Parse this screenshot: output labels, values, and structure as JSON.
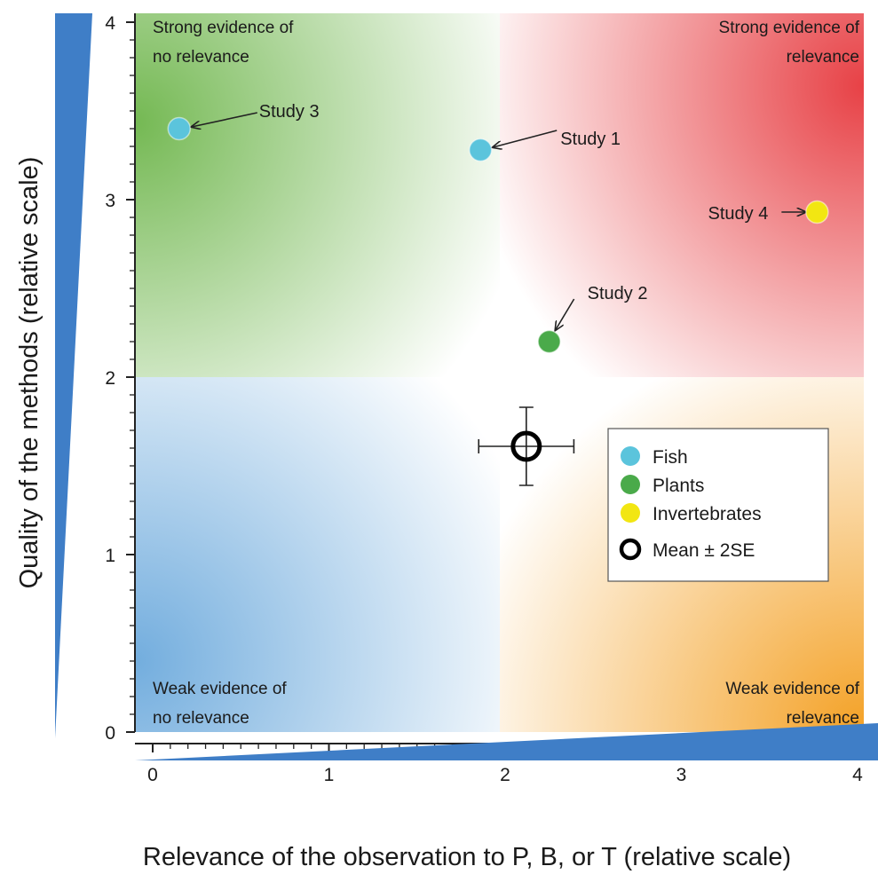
{
  "chart_data": {
    "type": "scatter",
    "xlabel": "Relevance of the observation to P, B, or T (relative scale)",
    "ylabel": "Quality of the methods (relative scale)",
    "xlim": [
      0,
      4
    ],
    "ylim": [
      0,
      4
    ],
    "x_ticks": [
      "0",
      "1",
      "2",
      "3",
      "4"
    ],
    "y_ticks": [
      "0",
      "1",
      "2",
      "3",
      "4"
    ],
    "quadrant_labels": {
      "top_left": [
        "Strong evidence of",
        "no relevance"
      ],
      "top_right": [
        "Strong evidence of",
        "relevance"
      ],
      "bottom_left": [
        "Weak evidence of",
        "no relevance"
      ],
      "bottom_right": [
        "Weak evidence of",
        "relevance"
      ]
    },
    "points": [
      {
        "label": "Study 3",
        "group": "Fish",
        "x": 0.15,
        "y": 3.4
      },
      {
        "label": "Study 1",
        "group": "Fish",
        "x": 1.86,
        "y": 3.28
      },
      {
        "label": "Study 4",
        "group": "Invertebrates",
        "x": 3.77,
        "y": 2.93
      },
      {
        "label": "Study 2",
        "group": "Plants",
        "x": 2.25,
        "y": 2.2
      }
    ],
    "mean": {
      "x": 2.12,
      "y": 1.61,
      "x_err": 0.27,
      "y_err": 0.22
    },
    "legend": [
      {
        "name": "Fish",
        "color": "#5bc4dc"
      },
      {
        "name": "Plants",
        "color": "#4aaa4a"
      },
      {
        "name": "Invertebrates",
        "color": "#f2e612"
      },
      {
        "name": "Mean ± 2SE",
        "color": "#000000"
      }
    ],
    "legend_position": "center-right",
    "quadrant_colors": {
      "top_left": "#6db54a",
      "top_right": "#e6373c",
      "bottom_left": "#5a9fd8",
      "bottom_right": "#f39c1a"
    },
    "axis_wedge_color": "#3f7ec7"
  }
}
